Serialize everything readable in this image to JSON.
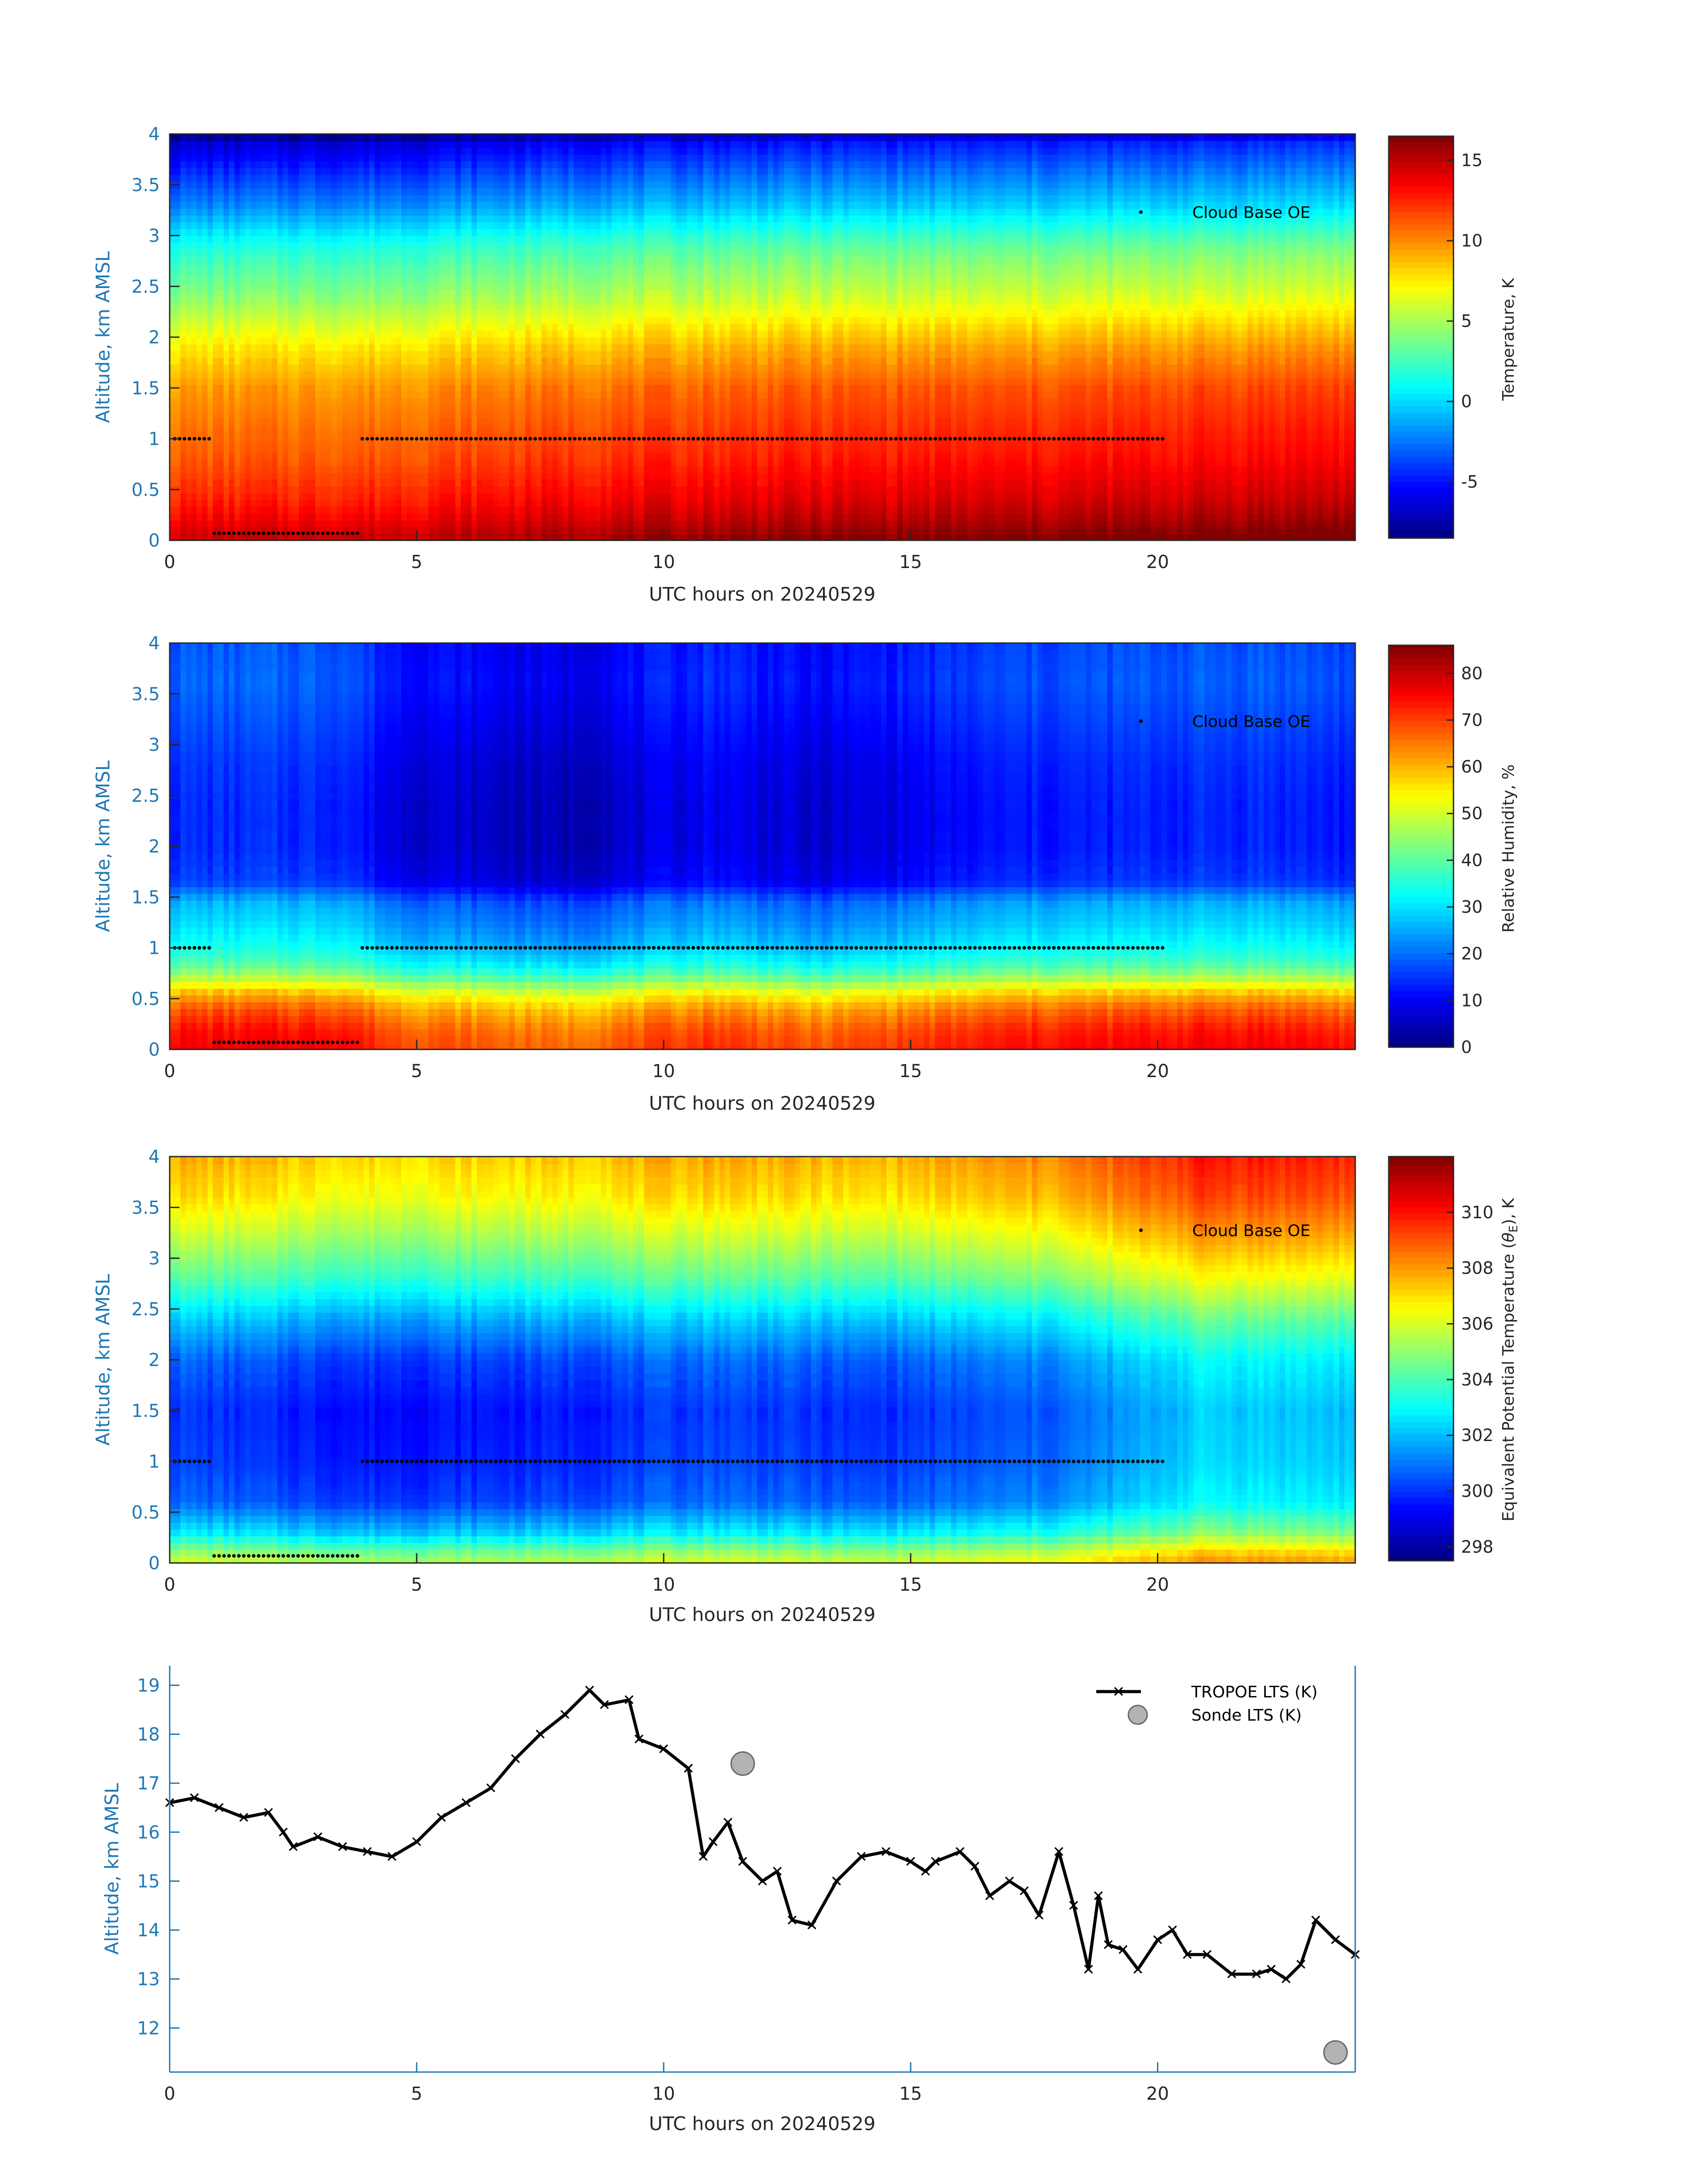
{
  "figure": {
    "background": "#ffffff",
    "tick_color": "#1f78b4",
    "axis_color": "#262626",
    "ylabel_color": "#1f78b4"
  },
  "chart_data": [
    {
      "type": "heatmap",
      "id": "temperature",
      "xlabel": "UTC hours on 20240529",
      "ylabel": "Altitude, km AMSL",
      "xlim": [
        0,
        24
      ],
      "ylim": [
        0,
        4
      ],
      "xticks": [
        "0",
        "5",
        "10",
        "15",
        "20"
      ],
      "yticks": [
        "0",
        "0.5",
        "1",
        "1.5",
        "2",
        "2.5",
        "3",
        "3.5",
        "4"
      ],
      "colorbar": {
        "label": "Temperature, K",
        "range": [
          -8.5,
          16.5
        ],
        "ticks": [
          "-5",
          "0",
          "5",
          "10",
          "15"
        ],
        "colormap": "jet"
      },
      "legend": {
        "label": "Cloud Base OE",
        "placement": "top-right"
      },
      "profile_rows": [
        {
          "z": 0.05,
          "v": 15.5
        },
        {
          "z": 0.2,
          "v": 14.5
        },
        {
          "z": 0.4,
          "v": 13.5
        },
        {
          "z": 0.6,
          "v": 12.8
        },
        {
          "z": 0.85,
          "v": 12.0
        },
        {
          "z": 1.1,
          "v": 11.5
        },
        {
          "z": 1.3,
          "v": 11.0
        },
        {
          "z": 1.5,
          "v": 10.5
        },
        {
          "z": 1.7,
          "v": 9.5
        },
        {
          "z": 1.9,
          "v": 8.5
        },
        {
          "z": 2.1,
          "v": 7.2
        },
        {
          "z": 2.3,
          "v": 5.8
        },
        {
          "z": 2.5,
          "v": 4.6
        },
        {
          "z": 2.7,
          "v": 3.6
        },
        {
          "z": 2.9,
          "v": 2.4
        },
        {
          "z": 3.1,
          "v": 0.6
        },
        {
          "z": 3.3,
          "v": -1.2
        },
        {
          "z": 3.5,
          "v": -2.6
        },
        {
          "z": 3.7,
          "v": -4.0
        },
        {
          "z": 3.9,
          "v": -5.5
        },
        {
          "z": 4.0,
          "v": -7.5
        }
      ],
      "time_adjust": [
        {
          "t": 0,
          "dv": -1.0
        },
        {
          "t": 4,
          "dv": -0.8
        },
        {
          "t": 8,
          "dv": 0.0
        },
        {
          "t": 12,
          "dv": 0.6
        },
        {
          "t": 17,
          "dv": 0.8
        },
        {
          "t": 20,
          "dv": 1.0
        },
        {
          "t": 24,
          "dv": 1.4
        }
      ],
      "cloud_base": [
        {
          "t0": 0.1,
          "t1": 0.85,
          "z": 1.0
        },
        {
          "t0": 0.9,
          "t1": 3.8,
          "z": 0.07
        },
        {
          "t0": 3.9,
          "t1": 20.1,
          "z": 1.0
        }
      ]
    },
    {
      "type": "heatmap",
      "id": "relative_humidity",
      "xlabel": "UTC hours on 20240529",
      "ylabel": "Altitude, km AMSL",
      "xlim": [
        0,
        24
      ],
      "ylim": [
        0,
        4
      ],
      "xticks": [
        "0",
        "5",
        "10",
        "15",
        "20"
      ],
      "yticks": [
        "0",
        "0.5",
        "1",
        "1.5",
        "2",
        "2.5",
        "3",
        "3.5",
        "4"
      ],
      "colorbar": {
        "label": "Relative Humidity, %",
        "range": [
          0,
          86
        ],
        "ticks": [
          "0",
          "10",
          "20",
          "30",
          "40",
          "50",
          "60",
          "70",
          "80"
        ],
        "colormap": "jet"
      },
      "legend": {
        "label": "Cloud Base OE",
        "placement": "top-right"
      },
      "profile_rows": [
        {
          "z": 0.05,
          "v": 72
        },
        {
          "z": 0.2,
          "v": 70
        },
        {
          "z": 0.4,
          "v": 64
        },
        {
          "z": 0.55,
          "v": 56
        },
        {
          "z": 0.7,
          "v": 44
        },
        {
          "z": 0.85,
          "v": 35
        },
        {
          "z": 1.0,
          "v": 30
        },
        {
          "z": 1.2,
          "v": 26
        },
        {
          "z": 1.45,
          "v": 22
        },
        {
          "z": 1.65,
          "v": 12
        },
        {
          "z": 2.0,
          "v": 10
        },
        {
          "z": 2.4,
          "v": 10
        },
        {
          "z": 2.8,
          "v": 11
        },
        {
          "z": 3.2,
          "v": 13
        },
        {
          "z": 3.6,
          "v": 15
        },
        {
          "z": 4.0,
          "v": 14
        }
      ],
      "time_adjust": [
        {
          "t": 0,
          "dv": 4
        },
        {
          "t": 3.5,
          "dv": 4
        },
        {
          "t": 4.5,
          "dv": -2
        },
        {
          "t": 8,
          "dv": -6
        },
        {
          "t": 11,
          "dv": 0
        },
        {
          "t": 13,
          "dv": -4
        },
        {
          "t": 17,
          "dv": 2
        },
        {
          "t": 22,
          "dv": 4
        },
        {
          "t": 24,
          "dv": 2
        }
      ],
      "cloud_base": [
        {
          "t0": 0.1,
          "t1": 0.85,
          "z": 1.0
        },
        {
          "t0": 0.9,
          "t1": 3.8,
          "z": 0.07
        },
        {
          "t0": 3.9,
          "t1": 20.1,
          "z": 1.0
        }
      ]
    },
    {
      "type": "heatmap",
      "id": "theta_e",
      "xlabel": "UTC hours on 20240529",
      "ylabel": "Altitude, km AMSL",
      "xlim": [
        0,
        24
      ],
      "ylim": [
        0,
        4
      ],
      "xticks": [
        "0",
        "5",
        "10",
        "15",
        "20"
      ],
      "yticks": [
        "0",
        "0.5",
        "1",
        "1.5",
        "2",
        "2.5",
        "3",
        "3.5",
        "4"
      ],
      "colorbar": {
        "label_pre": "Equivalent Potential Temperature (",
        "label_sym": "θ",
        "label_sub": "E",
        "label_post": "), K",
        "range": [
          297.5,
          312
        ],
        "ticks": [
          "298",
          "300",
          "302",
          "304",
          "306",
          "308",
          "310"
        ],
        "colormap": "jet"
      },
      "legend": {
        "label": "Cloud Base OE",
        "placement": "top-right"
      },
      "profile_rows": [
        {
          "z": 0.05,
          "v": 305.5
        },
        {
          "z": 0.3,
          "v": 302.5
        },
        {
          "z": 0.6,
          "v": 300.5
        },
        {
          "z": 1.0,
          "v": 300.0
        },
        {
          "z": 1.5,
          "v": 299.8
        },
        {
          "z": 2.0,
          "v": 300.5
        },
        {
          "z": 2.4,
          "v": 302.0
        },
        {
          "z": 2.8,
          "v": 304.0
        },
        {
          "z": 3.2,
          "v": 305.5
        },
        {
          "z": 3.6,
          "v": 306.8
        },
        {
          "z": 4.0,
          "v": 307.5
        }
      ],
      "time_adjust": [
        {
          "t": 0,
          "dv": 0.3
        },
        {
          "t": 4,
          "dv": -0.4
        },
        {
          "t": 8,
          "dv": -0.2
        },
        {
          "t": 11,
          "dv": 0.4
        },
        {
          "t": 14,
          "dv": 0.0
        },
        {
          "t": 18,
          "dv": 0.8
        },
        {
          "t": 21,
          "dv": 2.5
        },
        {
          "t": 24,
          "dv": 2.2
        }
      ],
      "cloud_base": [
        {
          "t0": 0.1,
          "t1": 0.85,
          "z": 1.0
        },
        {
          "t0": 0.9,
          "t1": 3.8,
          "z": 0.07
        },
        {
          "t0": 3.9,
          "t1": 20.1,
          "z": 1.0
        }
      ]
    },
    {
      "type": "line",
      "id": "lts",
      "xlabel": "UTC hours on 20240529",
      "ylabel": "Altitude, km AMSL",
      "xlim": [
        0,
        24
      ],
      "ylim": [
        11.1,
        19.4
      ],
      "xticks": [
        "0",
        "5",
        "10",
        "15",
        "20"
      ],
      "yticks": [
        "12",
        "13",
        "14",
        "15",
        "16",
        "17",
        "18",
        "19"
      ],
      "legend": {
        "placement": "top-right"
      },
      "series": [
        {
          "name": "TROPOE LTS (K)",
          "color": "#000000",
          "x": [
            0.0,
            0.5,
            1.0,
            1.5,
            2.0,
            2.3,
            2.5,
            3.0,
            3.5,
            4.0,
            4.5,
            5.0,
            5.5,
            6.0,
            6.5,
            7.0,
            7.5,
            8.0,
            8.5,
            8.8,
            9.3,
            9.5,
            10.0,
            10.5,
            10.8,
            11.0,
            11.3,
            11.6,
            12.0,
            12.3,
            12.6,
            13.0,
            13.5,
            14.0,
            14.5,
            15.0,
            15.3,
            15.5,
            16.0,
            16.3,
            16.6,
            17.0,
            17.3,
            17.6,
            18.0,
            18.3,
            18.6,
            18.8,
            19.0,
            19.3,
            19.6,
            20.0,
            20.3,
            20.6,
            21.0,
            21.5,
            22.0,
            22.3,
            22.6,
            22.9,
            23.2,
            23.6,
            24.0
          ],
          "y": [
            16.6,
            16.7,
            16.5,
            16.3,
            16.4,
            16.0,
            15.7,
            15.9,
            15.7,
            15.6,
            15.5,
            15.8,
            16.3,
            16.6,
            16.9,
            17.5,
            18.0,
            18.4,
            18.9,
            18.6,
            18.7,
            17.9,
            17.7,
            17.3,
            15.5,
            15.8,
            16.2,
            15.4,
            15.0,
            15.2,
            14.2,
            14.1,
            15.0,
            15.5,
            15.6,
            15.4,
            15.2,
            15.4,
            15.6,
            15.3,
            14.7,
            15.0,
            14.8,
            14.3,
            15.6,
            14.5,
            13.2,
            14.7,
            13.7,
            13.6,
            13.2,
            13.8,
            14.0,
            13.5,
            13.5,
            13.1,
            13.1,
            13.2,
            13.0,
            13.3,
            14.2,
            13.8,
            13.5
          ]
        },
        {
          "name": "Sonde LTS (K)",
          "color": "#b3b3b3",
          "x": [
            11.6,
            23.6
          ],
          "y": [
            17.4,
            11.5
          ]
        }
      ]
    }
  ]
}
